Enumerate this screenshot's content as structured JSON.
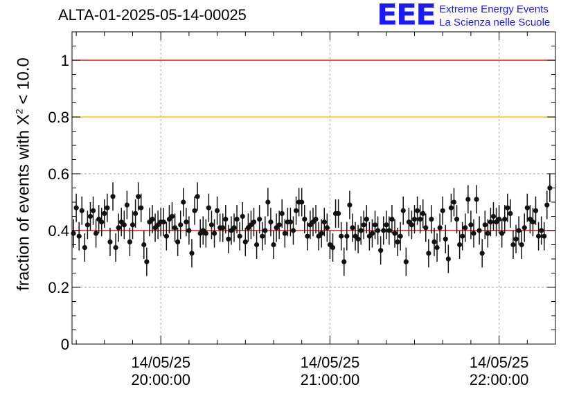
{
  "header": {
    "title": "ALTA-01-2025-05-14-00025",
    "logo_mark": "EEE",
    "logo_line1": "Extreme Energy Events",
    "logo_line2": "La Scienza nelle Scuole"
  },
  "colors": {
    "reference_red": "#e8130f",
    "reference_orange": "#ffc000",
    "grid": "#a0a0a0",
    "marker": "#111111",
    "logo_blue": "#1a1aff"
  },
  "chart_data": {
    "type": "scatter",
    "title": "ALTA-01-2025-05-14-00025",
    "ylabel_prefix": "fraction of events with X",
    "ylabel_sup": "2",
    "ylabel_suffix": " < 10.0",
    "xlabel": "",
    "ylim": [
      0,
      1.1
    ],
    "xlim_minutes": [
      -31.5,
      140
    ],
    "grid": true,
    "y_ticks": [
      0,
      0.2,
      0.4,
      0.6,
      0.8,
      1
    ],
    "y_tick_labels": [
      "0",
      "0.2",
      "0.4",
      "0.6",
      "0.8",
      "1"
    ],
    "x_ticks_minutes": [
      0,
      60,
      120
    ],
    "x_tick_dates": [
      "14/05/25",
      "14/05/25",
      "14/05/25"
    ],
    "x_tick_times": [
      "20:00:00",
      "21:00:00",
      "22:00:00"
    ],
    "reference_lines": [
      {
        "y": 1.0,
        "color": "red"
      },
      {
        "y": 0.8,
        "color": "orange"
      },
      {
        "y": 0.4,
        "color": "red"
      }
    ],
    "error": 0.05,
    "series": [
      {
        "name": "fraction",
        "x_start_minutes": -31,
        "x_step_minutes": 1,
        "values": [
          0.39,
          0.48,
          0.38,
          0.47,
          0.34,
          0.42,
          0.45,
          0.47,
          0.39,
          0.44,
          0.43,
          0.46,
          0.48,
          0.36,
          0.52,
          0.34,
          0.41,
          0.43,
          0.42,
          0.49,
          0.36,
          0.42,
          0.46,
          0.52,
          0.48,
          0.35,
          0.29,
          0.43,
          0.44,
          0.41,
          0.42,
          0.43,
          0.43,
          0.38,
          0.44,
          0.45,
          0.41,
          0.36,
          0.42,
          0.5,
          0.43,
          0.4,
          0.32,
          0.47,
          0.52,
          0.39,
          0.4,
          0.39,
          0.48,
          0.42,
          0.39,
          0.47,
          0.41,
          0.41,
          0.44,
          0.37,
          0.4,
          0.41,
          0.44,
          0.38,
          0.45,
          0.36,
          0.41,
          0.42,
          0.43,
          0.35,
          0.44,
          0.38,
          0.4,
          0.5,
          0.43,
          0.35,
          0.41,
          0.42,
          0.46,
          0.39,
          0.43,
          0.43,
          0.4,
          0.47,
          0.5,
          0.5,
          0.44,
          0.38,
          0.42,
          0.43,
          0.44,
          0.38,
          0.39,
          0.43,
          0.41,
          0.35,
          0.34,
          0.46,
          0.46,
          0.38,
          0.29,
          0.38,
          0.49,
          0.41,
          0.38,
          0.37,
          0.4,
          0.42,
          0.44,
          0.38,
          0.39,
          0.42,
          0.4,
          0.33,
          0.4,
          0.42,
          0.4,
          0.44,
          0.39,
          0.36,
          0.38,
          0.47,
          0.29,
          0.43,
          0.42,
          0.44,
          0.47,
          0.44,
          0.46,
          0.41,
          0.32,
          0.44,
          0.36,
          0.34,
          0.41,
          0.47,
          0.37,
          0.3,
          0.48,
          0.5,
          0.44,
          0.35,
          0.38,
          0.41,
          0.51,
          0.42,
          0.39,
          0.51,
          0.4,
          0.32,
          0.42,
          0.39,
          0.43,
          0.45,
          0.43,
          0.44,
          0.39,
          0.44,
          0.48,
          0.46,
          0.35,
          0.37,
          0.4,
          0.35,
          0.41,
          0.48,
          0.44,
          0.43,
          0.47,
          0.38,
          0.4,
          0.38,
          0.49,
          0.55
        ]
      }
    ]
  }
}
